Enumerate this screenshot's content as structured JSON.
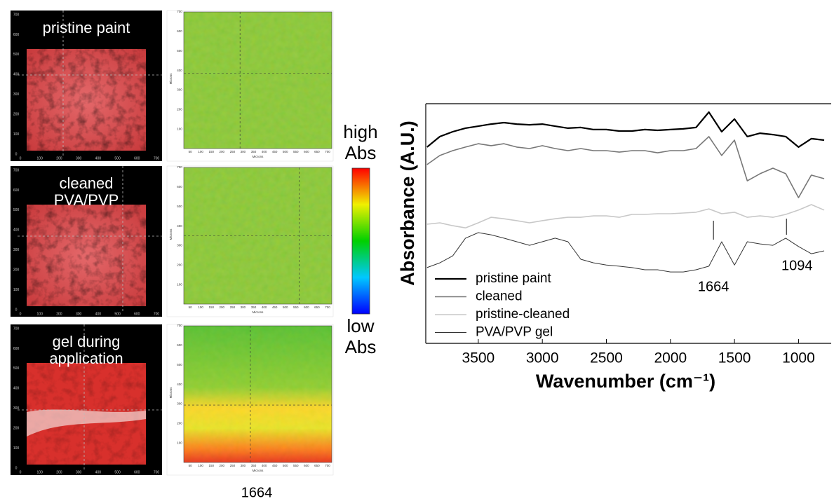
{
  "panels": [
    {
      "label": [
        "pristine paint"
      ]
    },
    {
      "label": [
        "cleaned",
        "PVA/PVP"
      ]
    },
    {
      "label": [
        "gel during",
        "application"
      ]
    }
  ],
  "image_axis": {
    "ticks": [
      0,
      100,
      200,
      300,
      400,
      500,
      600,
      700
    ],
    "label": "Microns"
  },
  "map_axis": {
    "ticks": [
      50,
      100,
      150,
      200,
      250,
      300,
      350,
      400,
      450,
      500,
      550,
      600,
      650,
      700
    ],
    "label": "Microns"
  },
  "colorbar": {
    "high_label": [
      "high",
      "Abs"
    ],
    "low_label": [
      "low",
      "Abs"
    ]
  },
  "map_caption": "1664",
  "chart_data": {
    "type": "line",
    "xlabel": "Wavenumber (cm⁻¹)",
    "ylabel": "Absorbance (A.U.)",
    "xlim": [
      3910,
      745
    ],
    "ylim": [
      0,
      100
    ],
    "xticks": [
      3500,
      3000,
      2500,
      2000,
      1500,
      1000
    ],
    "x": [
      3900,
      3800,
      3700,
      3600,
      3500,
      3400,
      3300,
      3200,
      3100,
      3000,
      2900,
      2800,
      2700,
      2600,
      2500,
      2400,
      2300,
      2200,
      2100,
      2000,
      1900,
      1800,
      1700,
      1600,
      1500,
      1400,
      1300,
      1200,
      1100,
      1000,
      900,
      800
    ],
    "series": [
      {
        "name": "pristine paint",
        "color": "#000000",
        "width": 2.2,
        "values": [
          81.9,
          86.3,
          88.3,
          89.8,
          90.6,
          91.5,
          92.1,
          91.5,
          91.2,
          91.5,
          90.6,
          89.8,
          90.1,
          89.2,
          89.2,
          88.6,
          88.6,
          89.2,
          88.9,
          89.2,
          89.5,
          90.1,
          96.5,
          88.3,
          93.6,
          86.3,
          87.7,
          87.1,
          86.3,
          81.9,
          85.4,
          84.8
        ]
      },
      {
        "name": "cleaned",
        "color": "#777777",
        "width": 1.6,
        "values": [
          74.6,
          78.4,
          80.4,
          81.9,
          83.3,
          82.5,
          83.3,
          81.9,
          81.3,
          82.5,
          81.3,
          80.4,
          81.3,
          80.4,
          80.4,
          79.8,
          80.4,
          80.4,
          79.5,
          80.4,
          80.4,
          81.3,
          86.3,
          78.4,
          84.8,
          67.8,
          70.8,
          73.1,
          70.8,
          60.8,
          70.2,
          68.7
        ]
      },
      {
        "name": "pristine-cleaned",
        "color": "#c8c8c8",
        "width": 1.6,
        "values": [
          49.7,
          50.3,
          49.1,
          48.2,
          50.3,
          52.6,
          52.0,
          51.2,
          50.3,
          51.2,
          52.0,
          52.6,
          52.6,
          53.2,
          53.2,
          52.6,
          53.8,
          53.8,
          54.1,
          54.1,
          54.4,
          54.7,
          56.1,
          54.1,
          54.7,
          52.6,
          53.2,
          52.6,
          53.8,
          55.6,
          57.9,
          55.6
        ]
      },
      {
        "name": "PVA/PVP gel",
        "color": "#333333",
        "width": 1,
        "values": [
          31.6,
          33.6,
          36.5,
          43.9,
          46.2,
          45.3,
          43.9,
          42.4,
          40.9,
          42.4,
          43.9,
          42.4,
          35.1,
          33.6,
          32.7,
          32.2,
          31.6,
          30.7,
          30.7,
          29.8,
          29.8,
          30.7,
          32.2,
          42.4,
          32.7,
          42.4,
          41.5,
          40.9,
          43.9,
          40.4,
          37.4,
          38.6
        ]
      }
    ],
    "annotations": [
      {
        "text": "1664",
        "x": 1664
      },
      {
        "text": "1094",
        "x": 1094
      }
    ]
  }
}
